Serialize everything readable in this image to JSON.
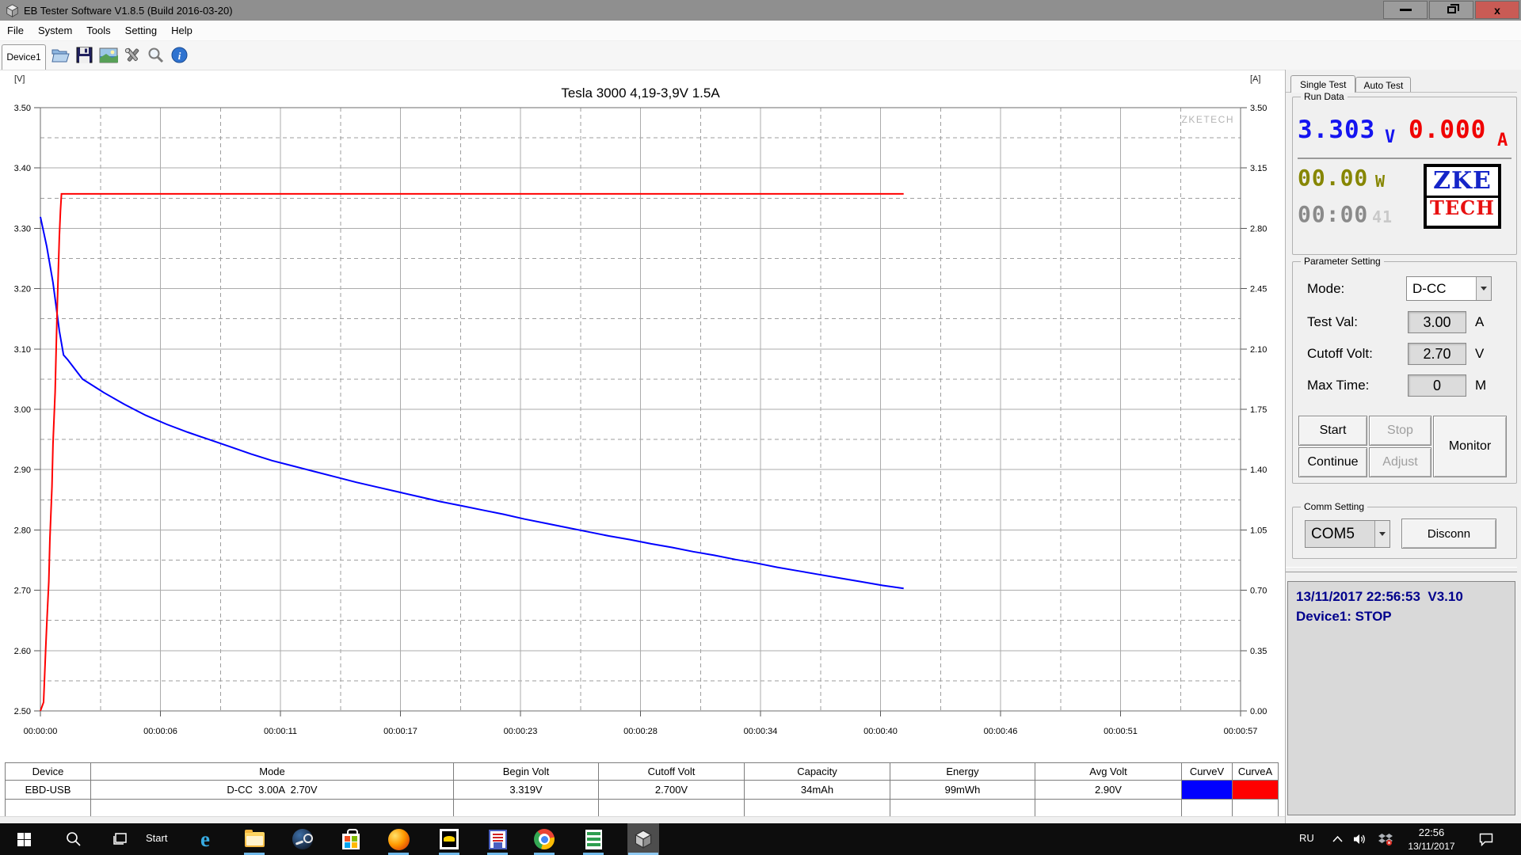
{
  "window": {
    "title": "EB Tester Software V1.8.5 (Build 2016-03-20)",
    "controls": {
      "close": "x"
    }
  },
  "menu": {
    "items": [
      "File",
      "System",
      "Tools",
      "Setting",
      "Help"
    ]
  },
  "toolbar": {
    "device_tab": "Device1",
    "icons": [
      "open-file",
      "save",
      "export-image",
      "tools",
      "zoom",
      "about-info"
    ]
  },
  "chart_data": {
    "type": "line",
    "title": "Tesla 3000 4,19-3,9V 1.5A",
    "watermark": "ZKETECH",
    "x_axis": {
      "tick_labels": [
        "00:00:00",
        "00:00:06",
        "00:00:11",
        "00:00:17",
        "00:00:23",
        "00:00:28",
        "00:00:34",
        "00:00:40",
        "00:00:46",
        "00:00:51",
        "00:00:57"
      ],
      "total_seconds": 57
    },
    "y_left": {
      "unit": "[V]",
      "min": 2.5,
      "max": 3.5,
      "tick_labels": [
        "3.50",
        "3.40",
        "3.30",
        "3.20",
        "3.10",
        "3.00",
        "2.90",
        "2.80",
        "2.70",
        "2.60",
        "2.50"
      ]
    },
    "y_right": {
      "unit": "[A]",
      "min": 0.0,
      "max": 3.5,
      "tick_labels": [
        "3.50",
        "3.15",
        "2.80",
        "2.45",
        "2.10",
        "1.75",
        "1.40",
        "1.05",
        "0.70",
        "0.35",
        "0.00"
      ]
    },
    "series": [
      {
        "name": "CurveV",
        "axis": "left",
        "color": "#0000ff",
        "points": [
          [
            0,
            3.319
          ],
          [
            0.3,
            3.27
          ],
          [
            0.6,
            3.21
          ],
          [
            0.9,
            3.13
          ],
          [
            1.1,
            3.09
          ],
          [
            1.3,
            3.082
          ],
          [
            2,
            3.05
          ],
          [
            3,
            3.028
          ],
          [
            4,
            3.008
          ],
          [
            5,
            2.99
          ],
          [
            6,
            2.975
          ],
          [
            7,
            2.962
          ],
          [
            8,
            2.95
          ],
          [
            9,
            2.938
          ],
          [
            10,
            2.926
          ],
          [
            11,
            2.915
          ],
          [
            12,
            2.906
          ],
          [
            13,
            2.897
          ],
          [
            14,
            2.888
          ],
          [
            15,
            2.879
          ],
          [
            16,
            2.871
          ],
          [
            17,
            2.863
          ],
          [
            18,
            2.855
          ],
          [
            19,
            2.847
          ],
          [
            20,
            2.84
          ],
          [
            21,
            2.833
          ],
          [
            22,
            2.826
          ],
          [
            23,
            2.818
          ],
          [
            24,
            2.811
          ],
          [
            25,
            2.804
          ],
          [
            26,
            2.797
          ],
          [
            27,
            2.79
          ],
          [
            28,
            2.784
          ],
          [
            29,
            2.777
          ],
          [
            30,
            2.771
          ],
          [
            31,
            2.764
          ],
          [
            32,
            2.758
          ],
          [
            33,
            2.751
          ],
          [
            34,
            2.745
          ],
          [
            35,
            2.738
          ],
          [
            36,
            2.732
          ],
          [
            37,
            2.726
          ],
          [
            38,
            2.72
          ],
          [
            39,
            2.714
          ],
          [
            40,
            2.708
          ],
          [
            41,
            2.703
          ]
        ]
      },
      {
        "name": "CurveA",
        "axis": "right",
        "color": "#ff0000",
        "points": [
          [
            0,
            0
          ],
          [
            0.15,
            0.05
          ],
          [
            0.25,
            0.35
          ],
          [
            0.3,
            0.5
          ],
          [
            0.4,
            0.75
          ],
          [
            0.45,
            1.0
          ],
          [
            0.55,
            1.3
          ],
          [
            0.6,
            1.55
          ],
          [
            0.7,
            1.85
          ],
          [
            0.75,
            2.1
          ],
          [
            0.8,
            2.35
          ],
          [
            0.85,
            2.55
          ],
          [
            0.9,
            2.75
          ],
          [
            0.95,
            2.9
          ],
          [
            1.0,
            3.0
          ],
          [
            41,
            3.0
          ]
        ]
      }
    ],
    "grid": {
      "major": "solid",
      "minor": "dashed"
    },
    "legend_position": "none"
  },
  "results_table": {
    "headers": [
      "Device",
      "Mode",
      "Begin Volt",
      "Cutoff Volt",
      "Capacity",
      "Energy",
      "Avg Volt",
      "CurveV",
      "CurveA"
    ],
    "rows": [
      [
        "EBD-USB",
        "D-CC  3.00A  2.70V",
        "3.319V",
        "2.700V",
        "34mAh",
        "99mWh",
        "2.90V",
        "#0000ff",
        "#ff0000"
      ],
      [
        "",
        "",
        "",
        "",
        "",
        "",
        "",
        "",
        ""
      ]
    ]
  },
  "right_panel": {
    "tabs": [
      {
        "label": "Single Test",
        "active": true
      },
      {
        "label": "Auto Test",
        "active": false
      }
    ],
    "run_data": {
      "group_label": "Run Data",
      "voltage": {
        "value": "3.303",
        "unit": "V",
        "color": "#0000ff"
      },
      "current": {
        "value": "0.000",
        "unit": "A",
        "color": "#ff0000"
      },
      "power": {
        "value": "00.00",
        "unit": "W",
        "color": "#868600"
      },
      "time": {
        "hhmm": "00:00",
        "ss": "41"
      },
      "logo": {
        "line1": "ZKE",
        "line2": "TECH"
      }
    },
    "parameter_setting": {
      "group_label": "Parameter Setting",
      "mode": {
        "label": "Mode:",
        "value": "D-CC"
      },
      "test_val": {
        "label": "Test Val:",
        "value": "3.00",
        "unit": "A"
      },
      "cutoff_volt": {
        "label": "Cutoff Volt:",
        "value": "2.70",
        "unit": "V"
      },
      "max_time": {
        "label": "Max Time:",
        "value": "0",
        "unit": "M"
      },
      "buttons": {
        "start": "Start",
        "stop": "Stop",
        "continue": "Continue",
        "adjust": "Adjust",
        "monitor": "Monitor"
      }
    },
    "comm_setting": {
      "group_label": "Comm Setting",
      "port": "COM5",
      "disconnect": "Disconn"
    },
    "log": {
      "lines": [
        "13/11/2017 22:56:53  V3.10",
        "Device1: STOP"
      ]
    }
  },
  "taskbar": {
    "start_label": "Start",
    "language": "RU",
    "time": "22:56",
    "date": "13/11/2017",
    "apps": [
      "windows-start",
      "search",
      "task-view",
      "edge",
      "file-explorer",
      "steam",
      "ms-store",
      "firefox",
      "the-bat",
      "disk-utility",
      "chrome",
      "spreadsheet",
      "eb-tester"
    ]
  }
}
